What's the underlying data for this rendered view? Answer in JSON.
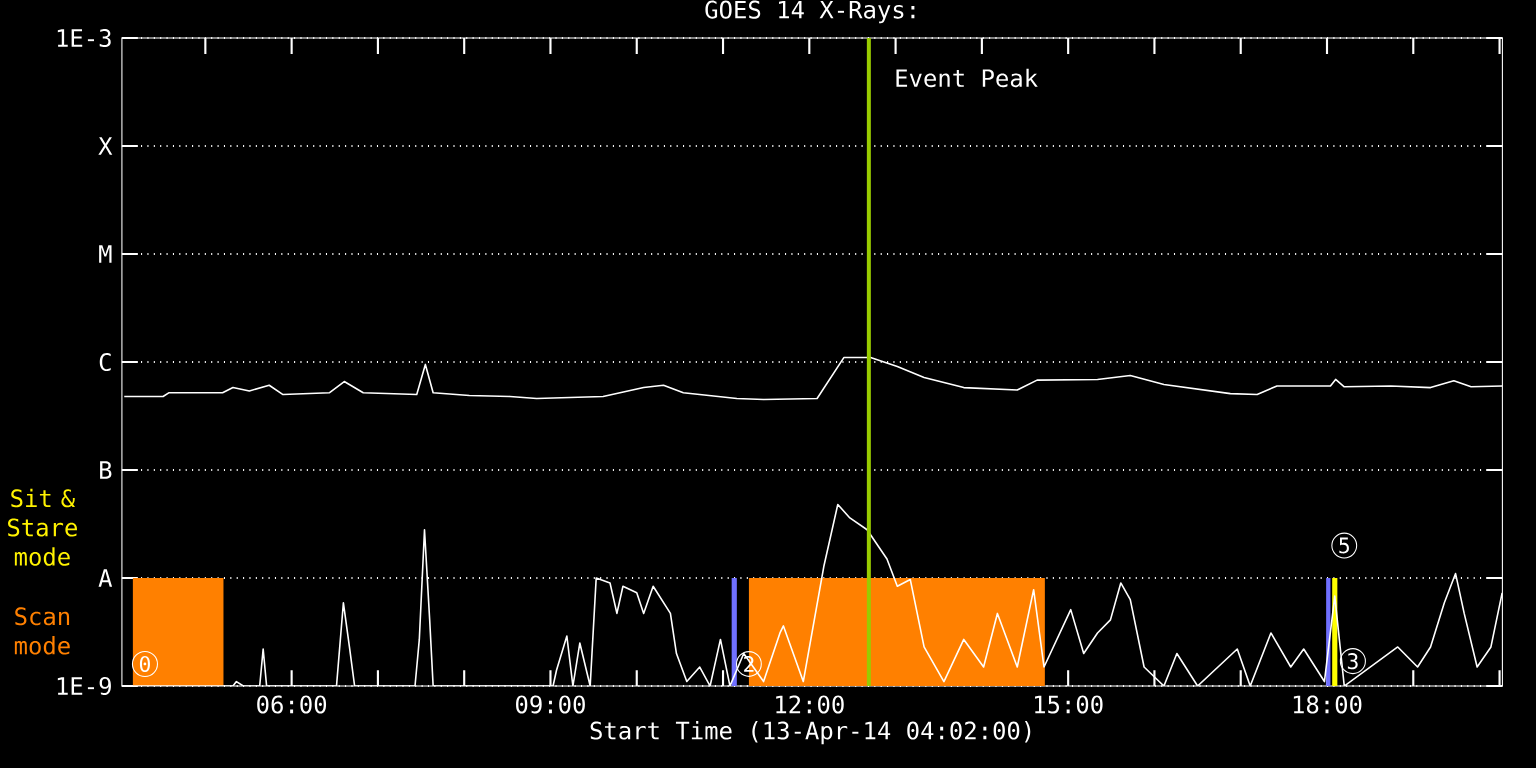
{
  "chart_data": {
    "type": "line",
    "title": "GOES 14 X-Rays:",
    "xlabel": "Start Time (13-Apr-14 04:02:00)",
    "log": "y",
    "grid": "y",
    "marker": "none",
    "line_style": "solid",
    "xlim": [
      4.033,
      20.033
    ],
    "xticks": [
      {
        "value": 5,
        "label": null
      },
      {
        "value": 6,
        "label": "06:00"
      },
      {
        "value": 7,
        "label": null
      },
      {
        "value": 8,
        "label": null
      },
      {
        "value": 9,
        "label": "09:00"
      },
      {
        "value": 10,
        "label": null
      },
      {
        "value": 11,
        "label": null
      },
      {
        "value": 12,
        "label": "12:00"
      },
      {
        "value": 13,
        "label": null
      },
      {
        "value": 14,
        "label": null
      },
      {
        "value": 15,
        "label": "15:00"
      },
      {
        "value": 16,
        "label": null
      },
      {
        "value": 17,
        "label": null
      },
      {
        "value": 18,
        "label": "18:00"
      },
      {
        "value": 19,
        "label": null
      },
      {
        "value": 20,
        "label": null
      }
    ],
    "ylim": [
      1e-09,
      0.001
    ],
    "yticks": [
      {
        "value": 1e-09,
        "label": "1E-9"
      },
      {
        "value": 1e-08,
        "label": "A"
      },
      {
        "value": 1e-07,
        "label": "B"
      },
      {
        "value": 1e-06,
        "label": "C"
      },
      {
        "value": 1e-05,
        "label": "M"
      },
      {
        "value": 0.0001,
        "label": "X"
      },
      {
        "value": 0.001,
        "label": "1E-3"
      }
    ],
    "series": [
      {
        "color": "#ffffff",
        "x": [
          4.06,
          4.51,
          4.58,
          5.2,
          5.32,
          5.51,
          5.74,
          5.9,
          6.44,
          6.61,
          6.83,
          7.45,
          7.55,
          7.64,
          8.06,
          8.53,
          8.84,
          9.61,
          10.08,
          10.31,
          10.54,
          11.16,
          11.47,
          12.09,
          12.4,
          12.71,
          13.02,
          13.33,
          13.79,
          14.41,
          14.64,
          15.34,
          15.72,
          16.11,
          16.88,
          17.19,
          17.42,
          18.04,
          18.1,
          18.2,
          18.74,
          19.2,
          19.47,
          19.67,
          20.03
        ],
        "values": [
          4.8e-07,
          4.8e-07,
          5.2e-07,
          5.2e-07,
          5.8e-07,
          5.4e-07,
          6.1e-07,
          5e-07,
          5.2e-07,
          6.6e-07,
          5.2e-07,
          5e-07,
          9.5e-07,
          5.2e-07,
          4.9e-07,
          4.8e-07,
          4.6e-07,
          4.8e-07,
          5.8e-07,
          6.1e-07,
          5.2e-07,
          4.6e-07,
          4.5e-07,
          4.6e-07,
          1.1e-06,
          1.1e-06,
          9.1e-07,
          7.2e-07,
          5.8e-07,
          5.5e-07,
          6.8e-07,
          6.9e-07,
          7.5e-07,
          6.2e-07,
          5.1e-07,
          5e-07,
          6e-07,
          6e-07,
          6.9e-07,
          5.9e-07,
          6e-07,
          5.8e-07,
          6.7e-07,
          5.9e-07,
          6e-07
        ]
      },
      {
        "color": "#ffffff",
        "x": [
          4.06,
          5.32,
          5.36,
          5.44,
          5.63,
          5.67,
          5.71,
          6.52,
          6.6,
          6.67,
          6.73,
          7.43,
          7.48,
          7.54,
          7.6,
          7.64,
          9.03,
          9.07,
          9.19,
          9.26,
          9.34,
          9.46,
          9.53,
          9.69,
          9.77,
          9.84,
          10.0,
          10.08,
          10.19,
          10.39,
          10.46,
          10.58,
          10.73,
          10.85,
          10.97,
          11.08,
          11.24,
          11.47,
          11.66,
          11.7,
          11.93,
          12.17,
          12.33,
          12.47,
          12.67,
          12.9,
          13.02,
          13.17,
          13.33,
          13.56,
          13.79,
          14.02,
          14.18,
          14.41,
          14.6,
          14.72,
          15.03,
          15.18,
          15.34,
          15.49,
          15.61,
          15.72,
          15.88,
          16.11,
          16.26,
          16.5,
          16.96,
          17.11,
          17.35,
          17.58,
          17.73,
          17.97,
          18.09,
          18.2,
          18.82,
          19.05,
          19.2,
          19.36,
          19.49,
          19.59,
          19.74,
          19.9,
          20.03
        ],
        "values": [
          1e-09,
          1e-09,
          1.1e-09,
          1e-09,
          1e-09,
          2.2e-09,
          1e-09,
          1e-09,
          5.9e-09,
          2.3e-09,
          1e-09,
          1e-09,
          2.7e-09,
          2.8e-08,
          4.1e-09,
          1e-09,
          1e-09,
          1.4e-09,
          2.9e-09,
          1e-09,
          2.5e-09,
          1e-09,
          1e-08,
          9e-09,
          4.7e-09,
          8.4e-09,
          7.3e-09,
          4.7e-09,
          8.4e-09,
          4.7e-09,
          2e-09,
          1.1e-09,
          1.5e-09,
          1e-09,
          2.7e-09,
          1e-09,
          2e-09,
          1.1e-09,
          3.1e-09,
          3.6e-09,
          1.1e-09,
          1.3e-08,
          4.8e-08,
          3.6e-08,
          2.8e-08,
          1.5e-08,
          8.4e-09,
          9.7e-09,
          2.3e-09,
          1.1e-09,
          2.7e-09,
          1.5e-09,
          4.7e-09,
          1.5e-09,
          7.8e-09,
          1.5e-09,
          5.1e-09,
          2e-09,
          3.1e-09,
          4.1e-09,
          9e-09,
          6.3e-09,
          1.5e-09,
          1e-09,
          2e-09,
          1e-09,
          2.2e-09,
          1e-09,
          3.1e-09,
          1.5e-09,
          2.2e-09,
          1.1e-09,
          6.8e-09,
          1e-09,
          2.3e-09,
          1.5e-09,
          2.3e-09,
          5.9e-09,
          1.1e-08,
          4.7e-09,
          1.5e-09,
          2.3e-09,
          7.3e-09
        ]
      }
    ],
    "bands": [
      {
        "axis": "x",
        "from": 4.16,
        "to": 5.21,
        "color": "#ff8000"
      },
      {
        "axis": "x",
        "from": 11.1,
        "to": 11.16,
        "color": "#7070ff"
      },
      {
        "axis": "x",
        "from": 11.3,
        "to": 14.73,
        "color": "#ff8000"
      },
      {
        "axis": "x",
        "from": 17.99,
        "to": 18.04,
        "color": "#7070ff"
      },
      {
        "axis": "x",
        "from": 18.06,
        "to": 18.12,
        "color": "#ffff00"
      }
    ],
    "ref_lines": [
      {
        "axis": "x",
        "value": 12.69,
        "label": "Event Peak",
        "color": "#99cc00"
      }
    ],
    "annotations": [
      "Sit & Stare mode",
      "Scan mode",
      {
        "text": "0",
        "x": 4.3,
        "y": 1.6e-09
      },
      {
        "text": "2",
        "x": 11.3,
        "y": 1.6e-09
      },
      {
        "text": "3",
        "x": 18.3,
        "y": 1.7e-09
      },
      {
        "text": "5",
        "x": 18.2,
        "y": 2e-08
      }
    ]
  }
}
